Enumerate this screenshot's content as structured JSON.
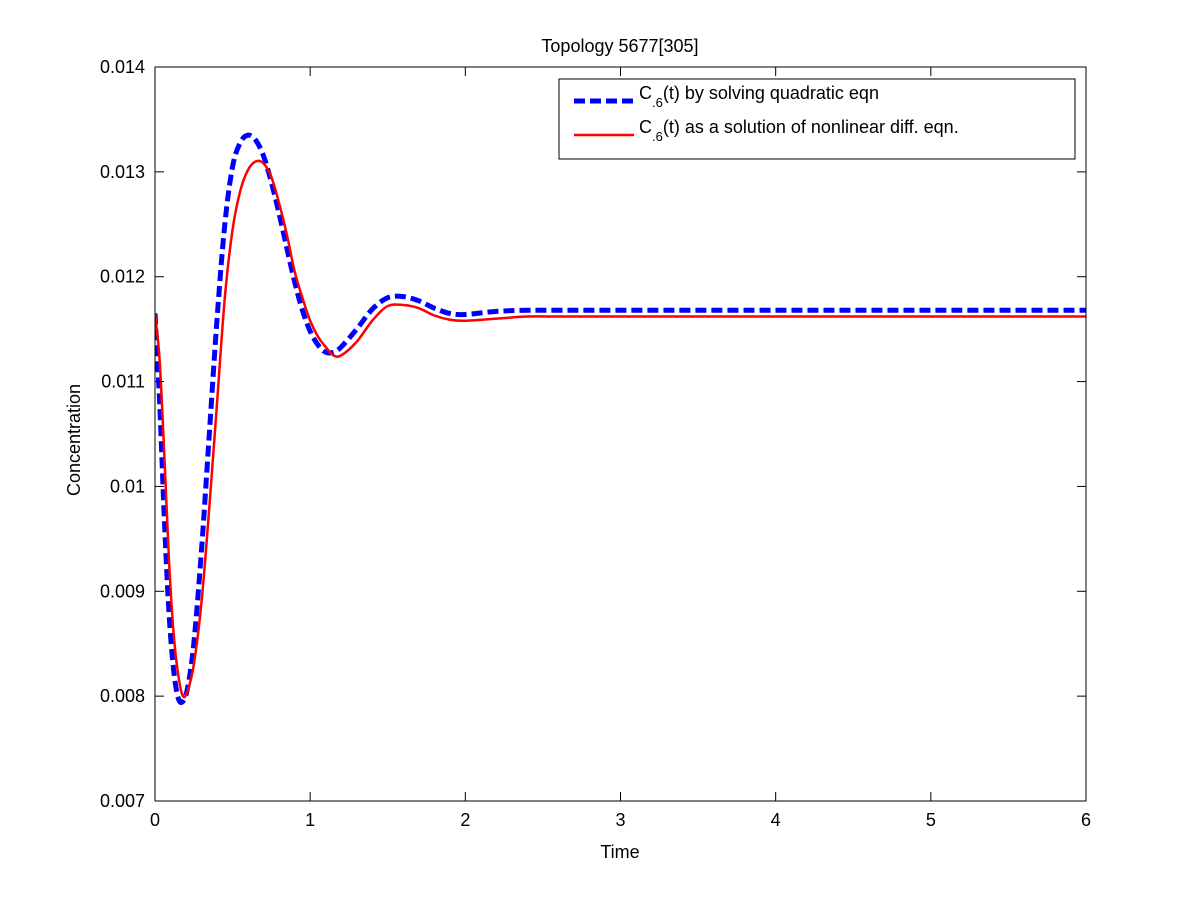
{
  "chart_data": {
    "type": "line",
    "title": "Topology 5677[305]",
    "xlabel": "Time",
    "ylabel": "Concentration",
    "xlim": [
      0,
      6
    ],
    "ylim": [
      0.007,
      0.014
    ],
    "xticks": [
      0,
      1,
      2,
      3,
      4,
      5,
      6
    ],
    "xtick_labels": [
      "0",
      "1",
      "2",
      "3",
      "4",
      "5",
      "6"
    ],
    "yticks": [
      0.007,
      0.008,
      0.009,
      0.01,
      0.011,
      0.012,
      0.013,
      0.014
    ],
    "ytick_labels": [
      "0.007",
      "0.008",
      "0.009",
      "0.01",
      "0.011",
      "0.012",
      "0.013",
      "0.014"
    ],
    "grid": false,
    "legend_position": "top-right",
    "series": [
      {
        "legend_main": "C",
        "legend_sub": ".6",
        "legend_rest": "(t) by solving quadratic eqn",
        "color": "#0000ff",
        "style": "dashed",
        "x": [
          0,
          0.03,
          0.06,
          0.09,
          0.12,
          0.15,
          0.18,
          0.21,
          0.25,
          0.3,
          0.35,
          0.4,
          0.45,
          0.5,
          0.55,
          0.6,
          0.65,
          0.7,
          0.75,
          0.8,
          0.85,
          0.9,
          0.95,
          1.0,
          1.05,
          1.1,
          1.15,
          1.2,
          1.3,
          1.4,
          1.5,
          1.6,
          1.7,
          1.8,
          1.9,
          2.0,
          2.2,
          2.4,
          2.6,
          3.0,
          4.0,
          5.0,
          6.0
        ],
        "y": [
          0.01165,
          0.0108,
          0.0097,
          0.0088,
          0.00825,
          0.00798,
          0.00795,
          0.00808,
          0.0085,
          0.0094,
          0.0105,
          0.0116,
          0.0125,
          0.01305,
          0.01328,
          0.01335,
          0.0133,
          0.01315,
          0.0129,
          0.0126,
          0.01227,
          0.01195,
          0.01168,
          0.01148,
          0.01135,
          0.01128,
          0.01128,
          0.01133,
          0.0115,
          0.01169,
          0.0118,
          0.01181,
          0.01177,
          0.0117,
          0.01165,
          0.01164,
          0.01167,
          0.01168,
          0.01168,
          0.01168,
          0.01168,
          0.01168,
          0.01168
        ]
      },
      {
        "legend_main": "C",
        "legend_sub": ".6",
        "legend_rest": "(t) as a solution of nonlinear diff. eqn.",
        "color": "#ff0000",
        "style": "solid",
        "x": [
          0,
          0.03,
          0.06,
          0.09,
          0.12,
          0.15,
          0.18,
          0.21,
          0.25,
          0.3,
          0.35,
          0.4,
          0.45,
          0.5,
          0.55,
          0.6,
          0.65,
          0.7,
          0.75,
          0.8,
          0.85,
          0.9,
          0.95,
          1.0,
          1.05,
          1.1,
          1.15,
          1.2,
          1.3,
          1.4,
          1.5,
          1.6,
          1.7,
          1.8,
          1.9,
          2.0,
          2.2,
          2.4,
          2.6,
          3.0,
          4.0,
          5.0,
          6.0
        ],
        "y": [
          0.01165,
          0.0112,
          0.0103,
          0.0093,
          0.0086,
          0.0082,
          0.008,
          0.00805,
          0.0083,
          0.0089,
          0.0098,
          0.0108,
          0.0118,
          0.01245,
          0.01282,
          0.01302,
          0.0131,
          0.01308,
          0.01295,
          0.0127,
          0.0124,
          0.01205,
          0.0118,
          0.01158,
          0.01143,
          0.01133,
          0.01125,
          0.01125,
          0.01138,
          0.01158,
          0.01172,
          0.01173,
          0.0117,
          0.01163,
          0.01159,
          0.01158,
          0.0116,
          0.01162,
          0.01162,
          0.01162,
          0.01162,
          0.01162,
          0.01162
        ]
      }
    ]
  }
}
